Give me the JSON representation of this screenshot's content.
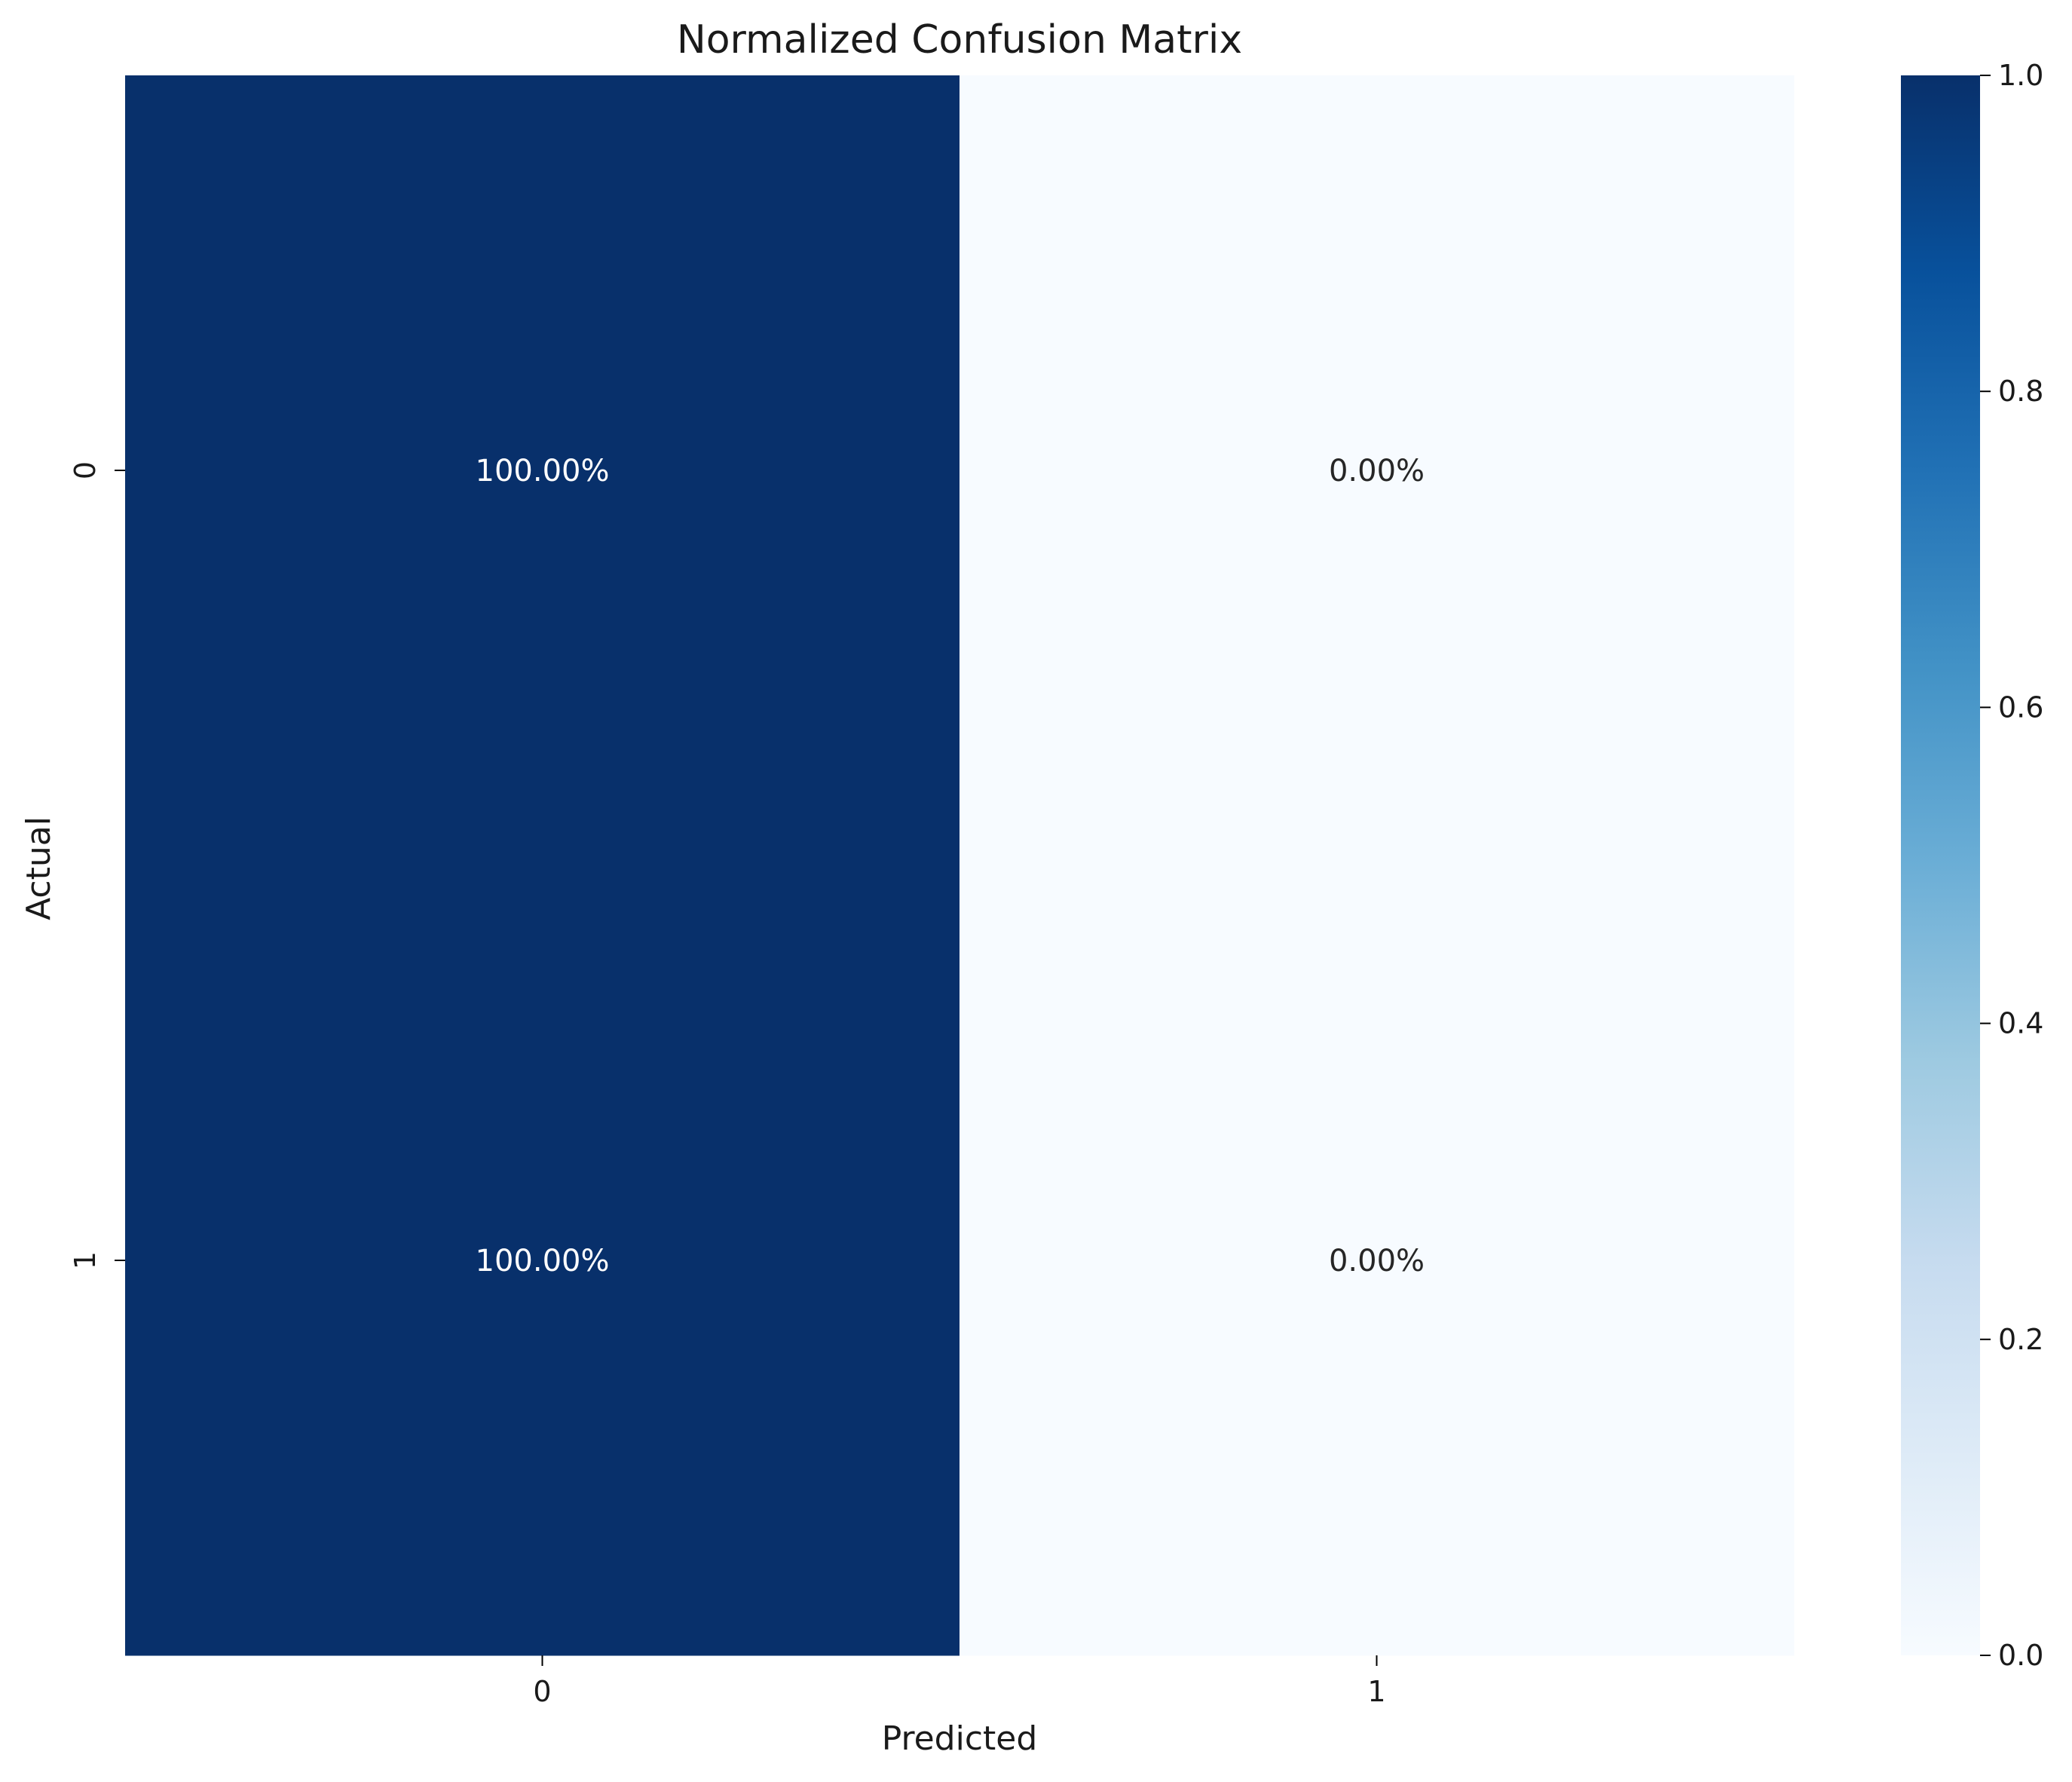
{
  "chart_data": {
    "type": "heatmap",
    "title": "Normalized Confusion Matrix",
    "xlabel": "Predicted",
    "ylabel": "Actual",
    "x_categories": [
      "0",
      "1"
    ],
    "y_categories": [
      "0",
      "1"
    ],
    "values": [
      [
        1.0,
        0.0
      ],
      [
        1.0,
        0.0
      ]
    ],
    "annotations": [
      [
        "100.00%",
        "0.00%"
      ],
      [
        "100.00%",
        "0.00%"
      ]
    ],
    "colorbar": {
      "range": [
        0.0,
        1.0
      ],
      "ticks": [
        "0.0",
        "0.2",
        "0.4",
        "0.6",
        "0.8",
        "1.0"
      ],
      "colormap": "Blues",
      "low_color": "#f7fbff",
      "high_color": "#08306b"
    },
    "grid": false
  }
}
